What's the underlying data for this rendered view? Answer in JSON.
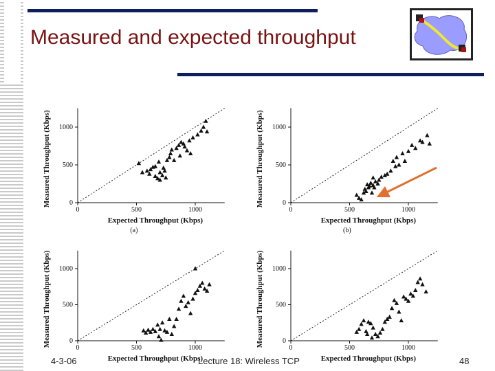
{
  "slide": {
    "title": "Measured and expected throughput",
    "date": "4-3-06",
    "lecture": "Lecture 18: Wireless TCP",
    "page_number": "48",
    "colors": {
      "title": "#7a1212",
      "bars": "#0f1e5c",
      "arrow": "#e07030"
    }
  },
  "chart_data": [
    {
      "type": "scatter",
      "caption": "(a)",
      "xlabel": "Expected Throughput (Kbps)",
      "ylabel": "Measured Throughput (Kbps)",
      "xlim": [
        0,
        1250
      ],
      "ylim": [
        0,
        1250
      ],
      "xticks": [
        "0",
        "500",
        "1000"
      ],
      "yticks": [
        "0",
        "500",
        "1000"
      ],
      "reference_line": "y = x (dotted)",
      "points": [
        [
          520,
          520
        ],
        [
          550,
          400
        ],
        [
          590,
          420
        ],
        [
          610,
          380
        ],
        [
          620,
          440
        ],
        [
          640,
          470
        ],
        [
          660,
          350
        ],
        [
          660,
          480
        ],
        [
          680,
          320
        ],
        [
          690,
          540
        ],
        [
          700,
          400
        ],
        [
          700,
          300
        ],
        [
          720,
          360
        ],
        [
          730,
          460
        ],
        [
          740,
          420
        ],
        [
          750,
          330
        ],
        [
          760,
          560
        ],
        [
          780,
          600
        ],
        [
          790,
          650
        ],
        [
          800,
          700
        ],
        [
          820,
          560
        ],
        [
          840,
          720
        ],
        [
          860,
          760
        ],
        [
          870,
          620
        ],
        [
          880,
          800
        ],
        [
          900,
          780
        ],
        [
          910,
          740
        ],
        [
          930,
          690
        ],
        [
          950,
          820
        ],
        [
          960,
          650
        ],
        [
          980,
          860
        ],
        [
          1020,
          900
        ],
        [
          1050,
          950
        ],
        [
          1070,
          1000
        ],
        [
          1090,
          1080
        ],
        [
          1100,
          940
        ]
      ]
    },
    {
      "type": "scatter",
      "caption": "(b)",
      "xlabel": "Expected Throughput (Kbps)",
      "ylabel": "Measured Throughput (Kbps)",
      "xlim": [
        0,
        1250
      ],
      "ylim": [
        0,
        1250
      ],
      "xticks": [
        "0",
        "500",
        "1000"
      ],
      "yticks": [
        "0",
        "500",
        "1000"
      ],
      "reference_line": "y = x (dotted)",
      "points": [
        [
          560,
          100
        ],
        [
          580,
          60
        ],
        [
          600,
          40
        ],
        [
          620,
          130
        ],
        [
          630,
          180
        ],
        [
          640,
          150
        ],
        [
          650,
          240
        ],
        [
          660,
          200
        ],
        [
          670,
          220
        ],
        [
          680,
          260
        ],
        [
          690,
          130
        ],
        [
          700,
          230
        ],
        [
          700,
          330
        ],
        [
          710,
          200
        ],
        [
          720,
          280
        ],
        [
          740,
          250
        ],
        [
          750,
          300
        ],
        [
          770,
          340
        ],
        [
          780,
          110
        ],
        [
          800,
          360
        ],
        [
          820,
          380
        ],
        [
          850,
          420
        ],
        [
          870,
          550
        ],
        [
          890,
          480
        ],
        [
          900,
          600
        ],
        [
          920,
          500
        ],
        [
          950,
          650
        ],
        [
          970,
          550
        ],
        [
          1000,
          680
        ],
        [
          1030,
          760
        ],
        [
          1060,
          720
        ],
        [
          1100,
          820
        ],
        [
          1120,
          800
        ],
        [
          1160,
          890
        ],
        [
          1180,
          780
        ]
      ]
    },
    {
      "type": "scatter",
      "caption": "",
      "xlabel": "Expected Throughput (Kbps)",
      "ylabel": "Measured Throughput (Kbps)",
      "xlim": [
        0,
        1250
      ],
      "ylim": [
        0,
        1250
      ],
      "xticks": [
        "0",
        "500",
        "1000"
      ],
      "yticks": [
        "0",
        "500",
        "1000"
      ],
      "reference_line": "y = x (dotted)",
      "points": [
        [
          560,
          140
        ],
        [
          580,
          110
        ],
        [
          600,
          150
        ],
        [
          620,
          120
        ],
        [
          640,
          160
        ],
        [
          660,
          130
        ],
        [
          680,
          220
        ],
        [
          690,
          60
        ],
        [
          700,
          160
        ],
        [
          710,
          10
        ],
        [
          720,
          250
        ],
        [
          740,
          140
        ],
        [
          760,
          120
        ],
        [
          780,
          300
        ],
        [
          800,
          90
        ],
        [
          820,
          200
        ],
        [
          840,
          300
        ],
        [
          860,
          440
        ],
        [
          880,
          550
        ],
        [
          900,
          620
        ],
        [
          920,
          480
        ],
        [
          940,
          530
        ],
        [
          960,
          380
        ],
        [
          980,
          580
        ],
        [
          1000,
          660
        ],
        [
          1000,
          1000
        ],
        [
          1020,
          700
        ],
        [
          1040,
          760
        ],
        [
          1060,
          800
        ],
        [
          1080,
          720
        ],
        [
          1100,
          690
        ],
        [
          1120,
          780
        ]
      ]
    },
    {
      "type": "scatter",
      "caption": "",
      "xlabel": "Expected Throughput (Kbps)",
      "ylabel": "Measured Throughput (Kbps)",
      "xlim": [
        0,
        1250
      ],
      "ylim": [
        0,
        1250
      ],
      "xticks": [
        "0",
        "500",
        "1000"
      ],
      "yticks": [
        "0",
        "500",
        "1000"
      ],
      "reference_line": "y = x (dotted)",
      "points": [
        [
          560,
          120
        ],
        [
          580,
          160
        ],
        [
          600,
          230
        ],
        [
          620,
          280
        ],
        [
          640,
          130
        ],
        [
          650,
          90
        ],
        [
          660,
          260
        ],
        [
          680,
          240
        ],
        [
          690,
          40
        ],
        [
          700,
          180
        ],
        [
          720,
          90
        ],
        [
          740,
          60
        ],
        [
          760,
          110
        ],
        [
          780,
          160
        ],
        [
          800,
          260
        ],
        [
          820,
          300
        ],
        [
          840,
          330
        ],
        [
          860,
          450
        ],
        [
          880,
          560
        ],
        [
          900,
          520
        ],
        [
          920,
          400
        ],
        [
          940,
          280
        ],
        [
          960,
          610
        ],
        [
          980,
          580
        ],
        [
          1000,
          550
        ],
        [
          1020,
          650
        ],
        [
          1040,
          620
        ],
        [
          1060,
          700
        ],
        [
          1080,
          810
        ],
        [
          1100,
          860
        ],
        [
          1120,
          780
        ],
        [
          1150,
          680
        ]
      ]
    }
  ]
}
